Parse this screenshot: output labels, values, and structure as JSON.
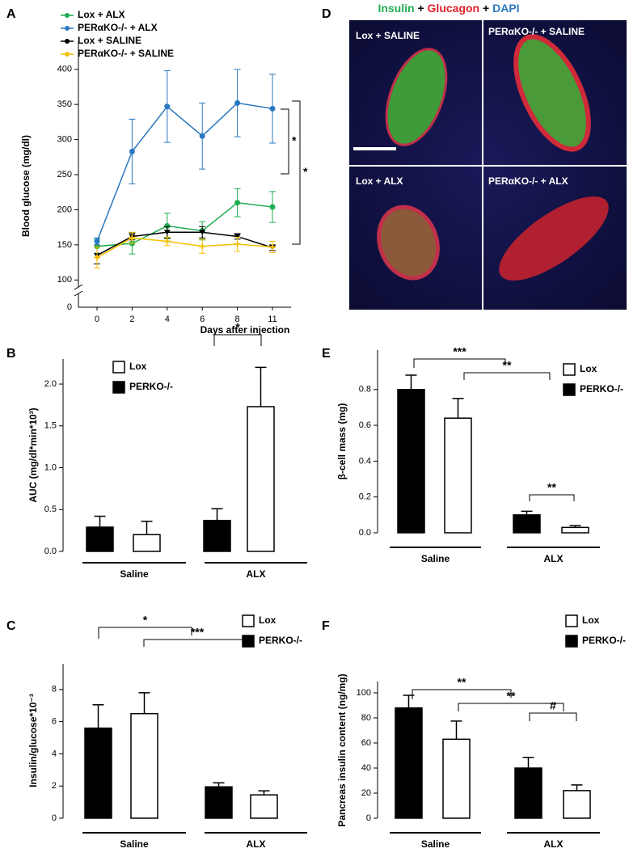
{
  "chart_data": [
    {
      "type": "line",
      "panel": "A",
      "x_label": "Days after injection",
      "y_label": "Blood glucose (mg/dl)",
      "categories": [
        "0",
        "2",
        "4",
        "6",
        "8",
        "11"
      ],
      "series": [
        {
          "name": "Lox + ALX",
          "color": "#1fae52",
          "marker": "circle",
          "values": [
            148,
            152,
            177,
            170,
            210,
            204
          ],
          "errors": [
            10,
            15,
            18,
            13,
            20,
            22
          ]
        },
        {
          "name": "PERαKO-/- + ALX",
          "color": "#2a78c0",
          "marker": "circle",
          "values": [
            155,
            283,
            347,
            305,
            352,
            344
          ],
          "errors": [
            5,
            46,
            51,
            47,
            48,
            49
          ]
        },
        {
          "name": "Lox + SALINE",
          "color": "#000000",
          "marker": "triangle-down",
          "values": [
            135,
            162,
            168,
            168,
            162,
            146
          ],
          "errors": [
            12,
            5,
            8,
            8,
            4,
            4
          ]
        },
        {
          "name": "PERαKO-/- + SALINE",
          "color": "#f5c000",
          "marker": "dash",
          "values": [
            132,
            160,
            155,
            148,
            151,
            147
          ],
          "errors": [
            15,
            8,
            6,
            10,
            10,
            8
          ]
        }
      ],
      "ylim": [
        90,
        440
      ],
      "yticks": [
        100,
        150,
        200,
        250,
        300,
        350,
        400
      ],
      "axis_break_tick": 0,
      "annotations": [
        "*",
        "*"
      ]
    },
    {
      "type": "bar",
      "panel": "B",
      "y_label": "AUC (mg/dl*min*10³)",
      "categories": [
        "Saline",
        "ALX"
      ],
      "series": [
        {
          "name": "PERKO-/-",
          "color": "#000000",
          "values": [
            0.29,
            0.37
          ],
          "errors": [
            0.13,
            0.14
          ]
        },
        {
          "name": "Lox",
          "color": "#ffffff",
          "values": [
            0.2,
            1.73
          ],
          "errors": [
            0.16,
            0.47
          ]
        }
      ],
      "ylim": [
        0,
        2.3
      ],
      "yticks": [
        {
          "value": 0,
          "label": "0.0"
        },
        0.5,
        {
          "value": 1,
          "label": "1.0"
        },
        1.5,
        {
          "value": 2,
          "label": "2.0"
        }
      ],
      "annotations": [
        "*"
      ]
    },
    {
      "type": "bar",
      "panel": "C",
      "y_label": "Insulin/glucose*10⁻³",
      "categories": [
        "Saline",
        "ALX"
      ],
      "series": [
        {
          "name": "PERKO-/-",
          "color": "#000000",
          "values": [
            5.6,
            1.95
          ],
          "errors": [
            1.45,
            0.25
          ]
        },
        {
          "name": "Lox",
          "color": "#ffffff",
          "values": [
            6.5,
            1.45
          ],
          "errors": [
            1.3,
            0.25
          ]
        }
      ],
      "ylim": [
        0,
        9.6
      ],
      "yticks": [
        0,
        2,
        4,
        6,
        8
      ],
      "annotations": [
        "*",
        "***"
      ]
    },
    {
      "type": "bar",
      "panel": "E",
      "y_label": "β-cell mass (mg)",
      "categories": [
        "Saline",
        "ALX"
      ],
      "series": [
        {
          "name": "PERKO-/-",
          "color": "#000000",
          "values": [
            0.8,
            0.1
          ],
          "errors": [
            0.08,
            0.02
          ]
        },
        {
          "name": "Lox",
          "color": "#ffffff",
          "values": [
            0.64,
            0.03
          ],
          "errors": [
            0.11,
            0.01
          ]
        }
      ],
      "ylim": [
        0,
        1.02
      ],
      "yticks": [
        {
          "value": 0,
          "label": "0.0"
        },
        0.2,
        0.4,
        0.6,
        0.8
      ],
      "annotations": [
        "***",
        "**",
        "**"
      ]
    },
    {
      "type": "bar",
      "panel": "F",
      "y_label": "Pancreas insulin content (ng/mg)",
      "categories": [
        "Saline",
        "ALX"
      ],
      "series": [
        {
          "name": "PERKO-/-",
          "color": "#000000",
          "values": [
            88,
            40
          ],
          "errors": [
            10,
            8.5
          ]
        },
        {
          "name": "Lox",
          "color": "#ffffff",
          "values": [
            63,
            22
          ],
          "errors": [
            14.5,
            4.5
          ]
        }
      ],
      "ylim": [
        0,
        109
      ],
      "yticks": [
        0,
        20,
        40,
        60,
        80,
        100
      ],
      "annotations": [
        "**",
        "**",
        "#"
      ]
    }
  ],
  "panel_d": {
    "letter": "D",
    "stain_title": [
      "Insulin",
      "+",
      "Glucagon",
      "+",
      "DAPI"
    ],
    "labels": [
      "Lox + SALINE",
      "PERαKO-/- + SALINE",
      "Lox + ALX",
      "PERαKO-/- + ALX"
    ]
  }
}
